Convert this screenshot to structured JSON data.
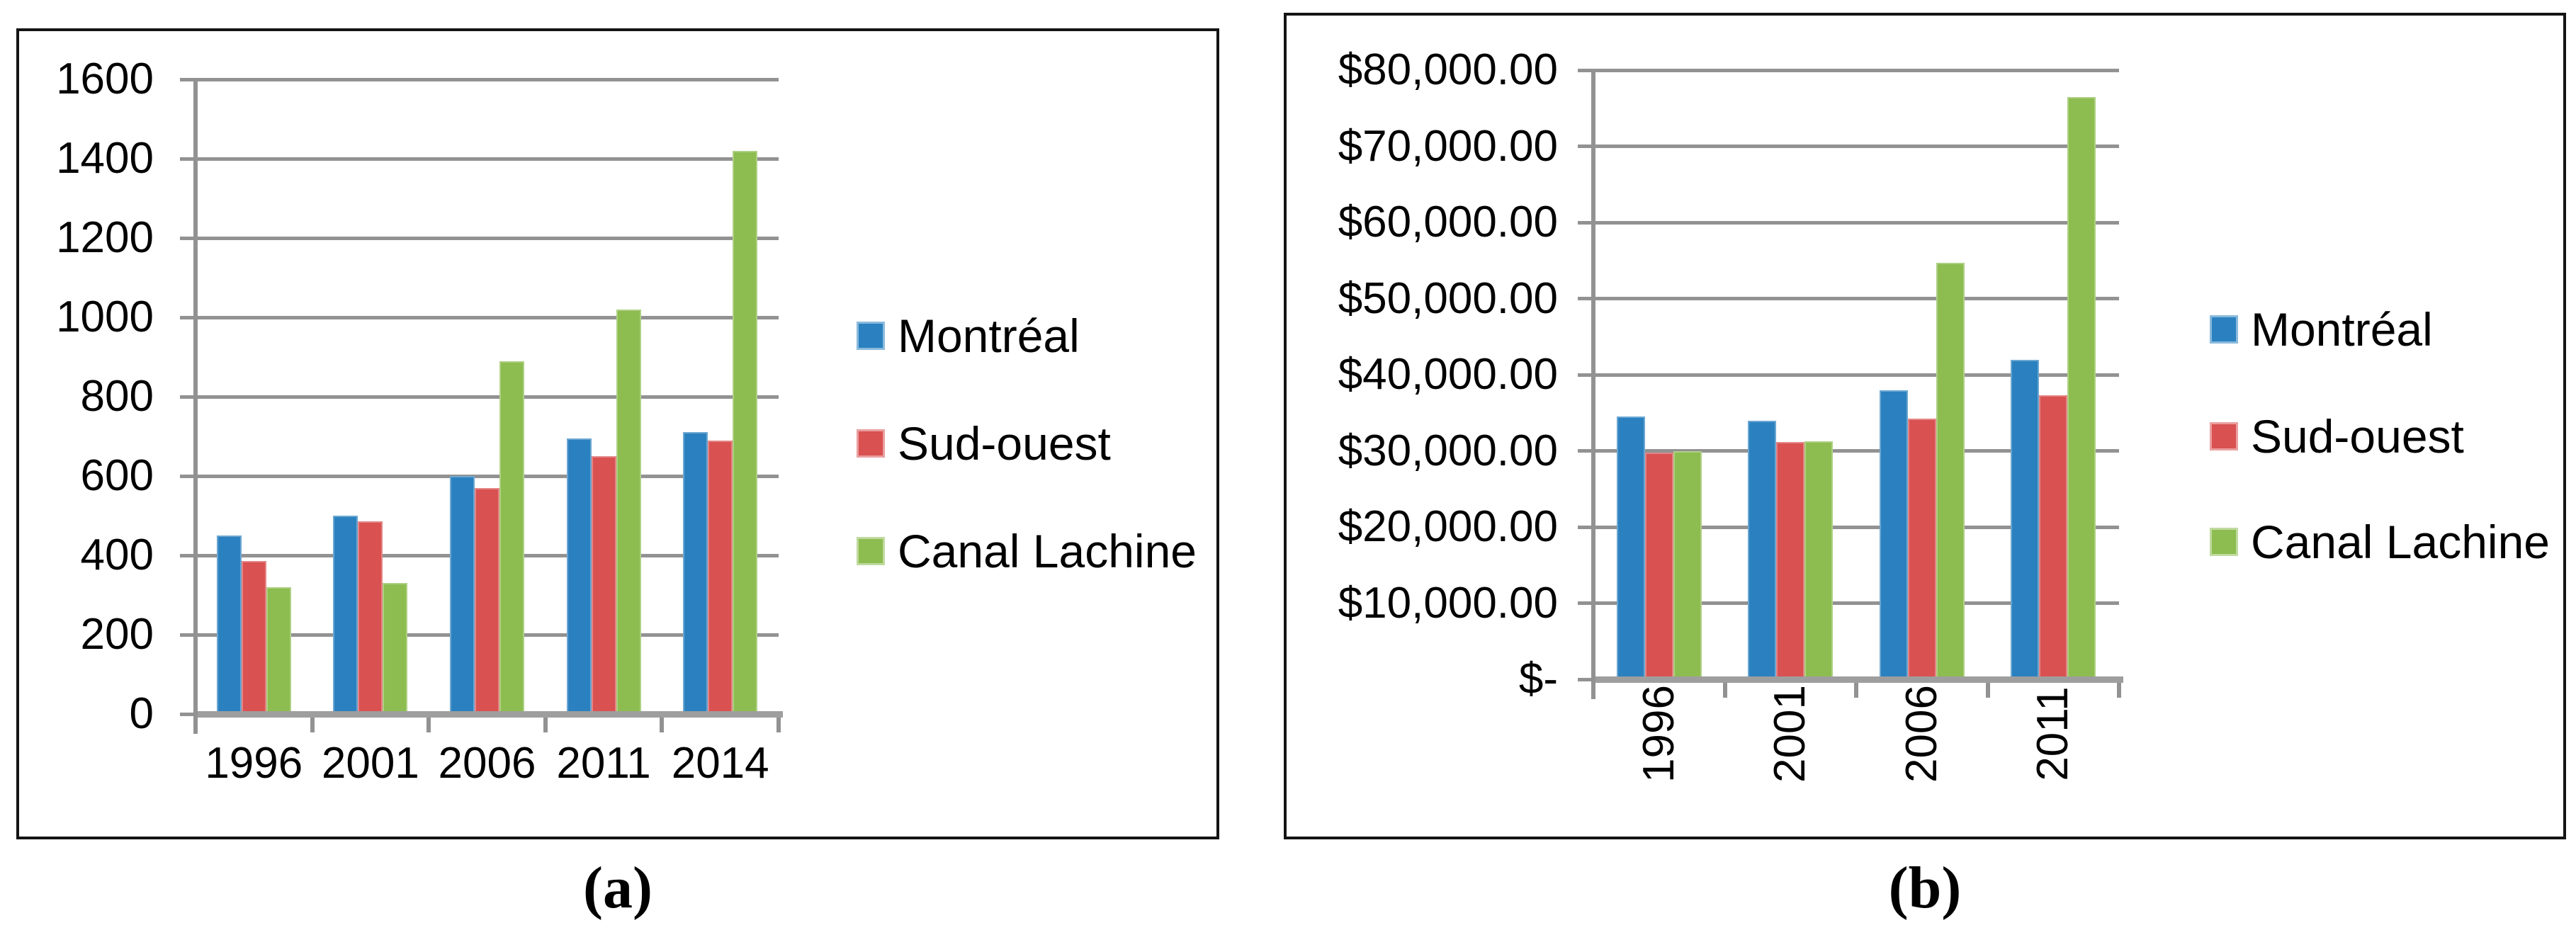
{
  "figure": {
    "background": "#FFFFFF"
  },
  "colors": {
    "montreal_blue": "#2B81BF",
    "sudouest_red": "#D95151",
    "canal_green": "#8DBC50",
    "gridline_gray": "#929292",
    "panel_border_black": "#141414",
    "text_black": "#000000"
  },
  "panels": [
    {
      "caption": "(a)"
    },
    {
      "caption": "(b)"
    }
  ],
  "chart_data": [
    {
      "type": "bar",
      "title": "",
      "xlabel": "",
      "ylabel": "",
      "categories": [
        "1996",
        "2001",
        "2006",
        "2011",
        "2014"
      ],
      "series": [
        {
          "name": "Montréal",
          "color": "#2B81BF",
          "values": [
            450,
            500,
            600,
            695,
            710
          ]
        },
        {
          "name": "Sud-ouest",
          "color": "#D95151",
          "values": [
            385,
            485,
            570,
            650,
            690
          ]
        },
        {
          "name": "Canal Lachine",
          "color": "#8DBC50",
          "values": [
            320,
            330,
            890,
            1020,
            1420
          ]
        }
      ],
      "ylim": [
        0,
        1600
      ],
      "ytick_step": 200,
      "y_tick_labels": [
        "0",
        "200",
        "400",
        "600",
        "800",
        "1000",
        "1200",
        "1400",
        "1600"
      ],
      "grid": true,
      "legend_position": "right",
      "x_label_rotation": 0
    },
    {
      "type": "bar",
      "title": "",
      "xlabel": "",
      "ylabel": "",
      "categories": [
        "1996",
        "2001",
        "2006",
        "2011"
      ],
      "series": [
        {
          "name": "Montréal",
          "color": "#2B81BF",
          "values": [
            34500,
            34000,
            38000,
            42000
          ]
        },
        {
          "name": "Sud-ouest",
          "color": "#D95151",
          "values": [
            29800,
            31200,
            34200,
            37300
          ]
        },
        {
          "name": "Canal Lachine",
          "color": "#8DBC50",
          "values": [
            30000,
            31300,
            54700,
            76500
          ]
        }
      ],
      "ylim": [
        0,
        80000
      ],
      "ytick_step": 10000,
      "y_tick_labels": [
        "$-",
        "$10,000.00",
        "$20,000.00",
        "$30,000.00",
        "$40,000.00",
        "$50,000.00",
        "$60,000.00",
        "$70,000.00",
        "$80,000.00"
      ],
      "grid": true,
      "legend_position": "right",
      "x_label_rotation": -90
    }
  ]
}
